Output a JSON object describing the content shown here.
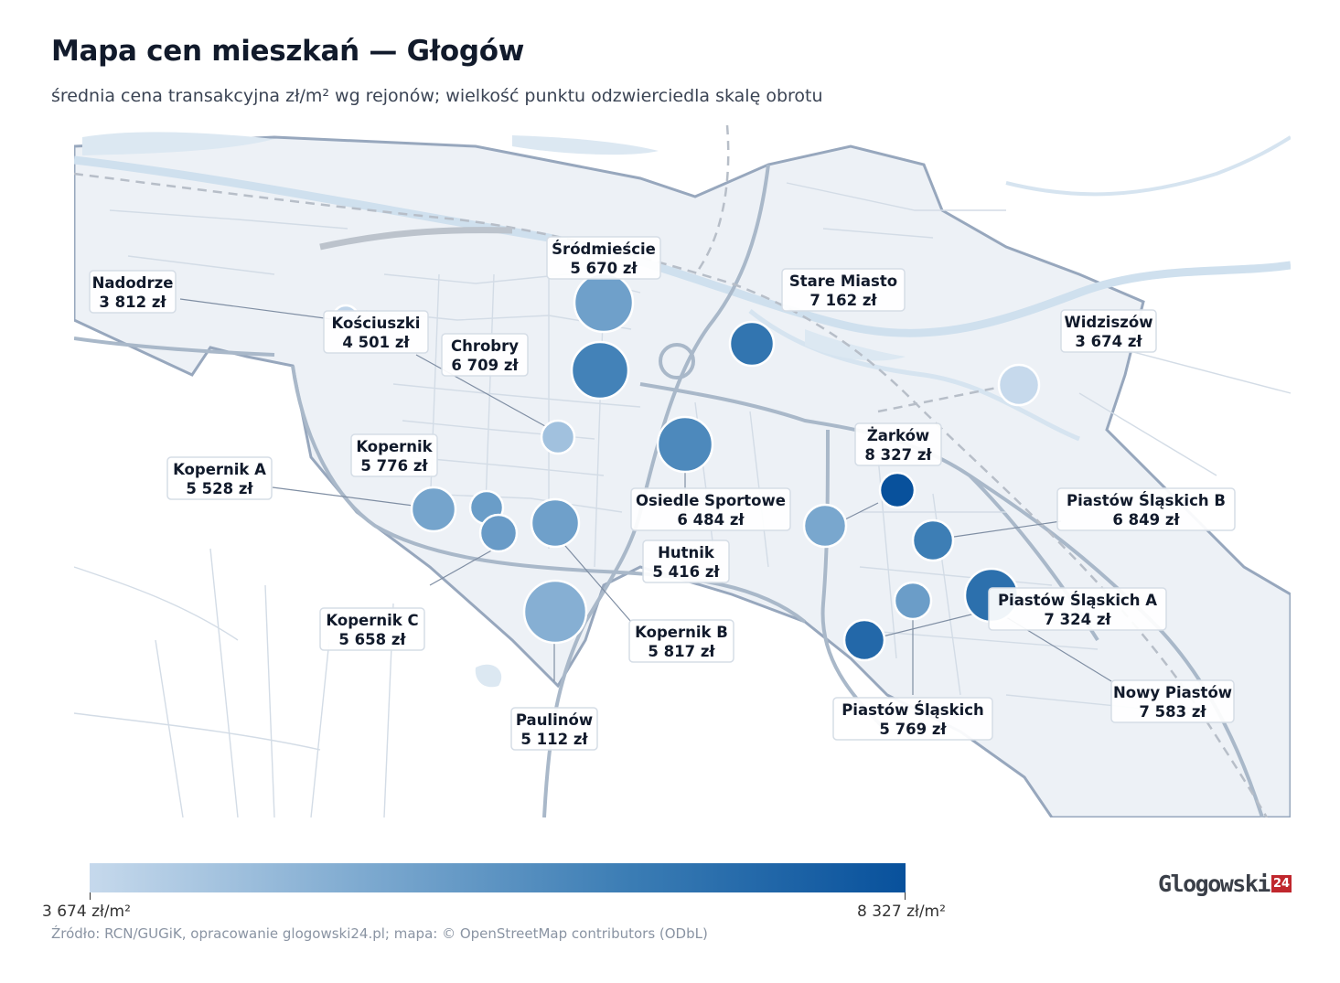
{
  "title": "Mapa cen mieszkań — Głogów",
  "subtitle": "średnia cena transakcyjna zł/m² wg rejonów; wielkość punktu odzwierciedla skalę obrotu",
  "source": "Źródło: RCN/GUGiK, opracowanie glogowski24.pl; mapa: © OpenStreetMap contributors (ODbL)",
  "logo": {
    "text": "Glogowski",
    "mark": "24"
  },
  "colorbar": {
    "min_label": "3 674 zł/m²",
    "max_label": "8 327 zł/m²",
    "min_value": 3674,
    "max_value": 8327,
    "color_low": "#c6d9ec",
    "color_high": "#08519c"
  },
  "districts": [
    {
      "name": "Nadodrze",
      "price_label": "3 812 zł",
      "price": 3812
    },
    {
      "name": "Kościuszki",
      "price_label": "4 501 zł",
      "price": 4501
    },
    {
      "name": "Śródmieście",
      "price_label": "5 670 zł",
      "price": 5670
    },
    {
      "name": "Chrobry",
      "price_label": "6 709 zł",
      "price": 6709
    },
    {
      "name": "Stare Miasto",
      "price_label": "7 162 zł",
      "price": 7162
    },
    {
      "name": "Widziszów",
      "price_label": "3 674 zł",
      "price": 3674
    },
    {
      "name": "Kopernik",
      "price_label": "5 776 zł",
      "price": 5776
    },
    {
      "name": "Kopernik A",
      "price_label": "5 528 zł",
      "price": 5528
    },
    {
      "name": "Osiedle Sportowe",
      "price_label": "6 484 zł",
      "price": 6484
    },
    {
      "name": "Żarków",
      "price_label": "8 327 zł",
      "price": 8327
    },
    {
      "name": "Hutnik",
      "price_label": "5 416 zł",
      "price": 5416
    },
    {
      "name": "Piastów Śląskich B",
      "price_label": "6 849 zł",
      "price": 6849
    },
    {
      "name": "Kopernik C",
      "price_label": "5 658 zł",
      "price": 5658
    },
    {
      "name": "Kopernik B",
      "price_label": "5 817 zł",
      "price": 5817
    },
    {
      "name": "Piastów Śląskich A",
      "price_label": "7 324 zł",
      "price": 7324
    },
    {
      "name": "Paulinów",
      "price_label": "5 112 zł",
      "price": 5112
    },
    {
      "name": "Piastów Śląskich",
      "price_label": "5 769 zł",
      "price": 5769
    },
    {
      "name": "Nowy Piastów",
      "price_label": "7 583 zł",
      "price": 7583
    }
  ]
}
